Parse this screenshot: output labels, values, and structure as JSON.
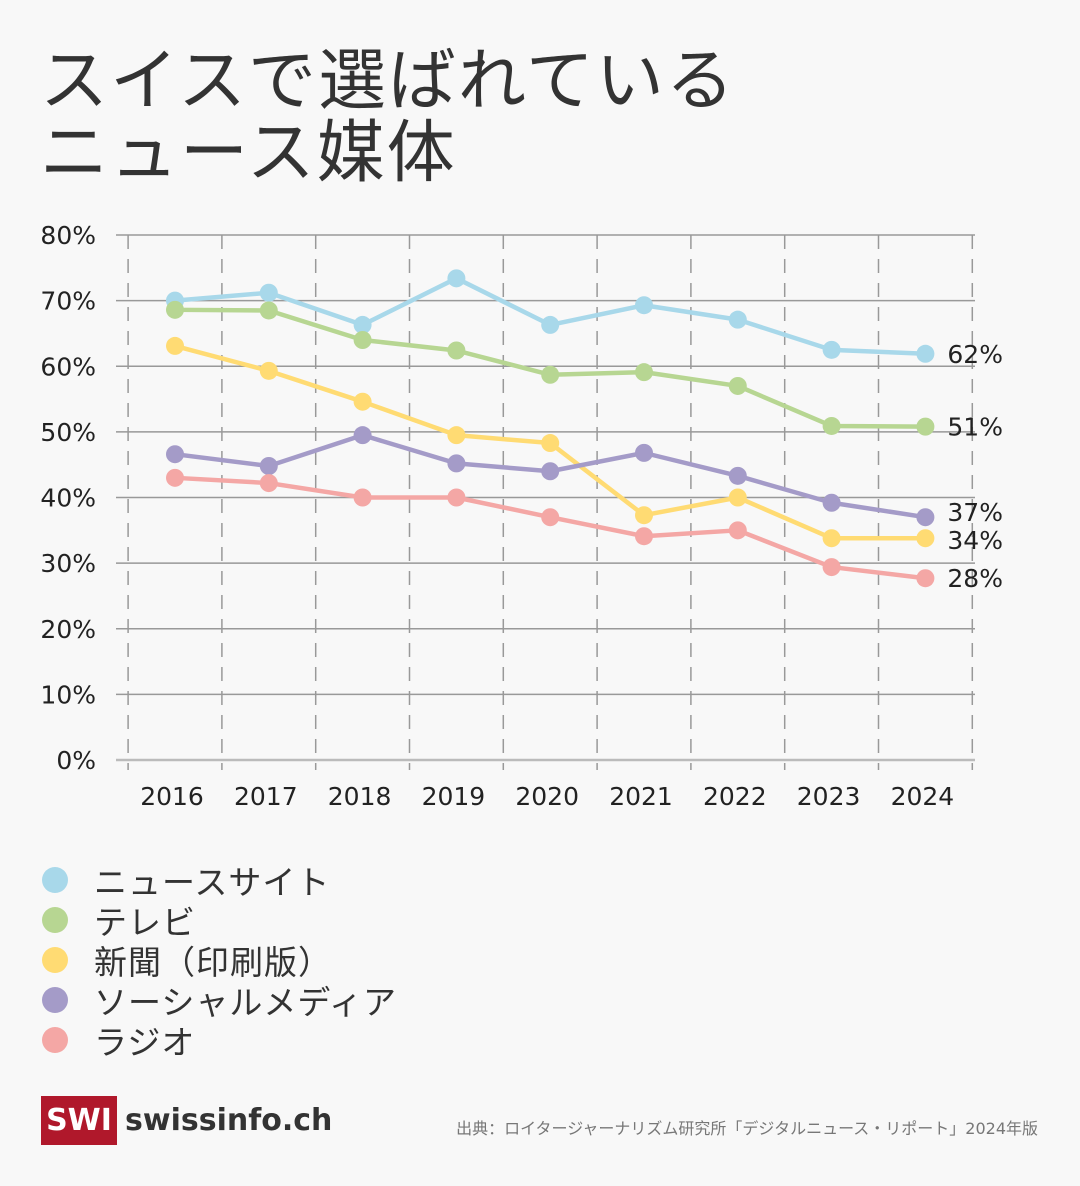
{
  "title": [
    "スイスで選ばれている",
    "ニュース媒体"
  ],
  "chart_data": {
    "type": "line",
    "title": "スイスで選ばれているニュース媒体",
    "x": [
      "2016",
      "2017",
      "2018",
      "2019",
      "2020",
      "2021",
      "2022",
      "2023",
      "2024"
    ],
    "ylim": [
      0,
      80
    ],
    "yticks": [
      "0%",
      "10%",
      "20%",
      "30%",
      "40%",
      "50%",
      "60%",
      "70%",
      "80%"
    ],
    "ytick_values": [
      0,
      10,
      20,
      30,
      40,
      50,
      60,
      70,
      80
    ],
    "grid": true,
    "legend_position": "bottom-left",
    "series": [
      {
        "name": "ニュースサイト",
        "color": "#a8d8ea",
        "values": [
          70.0,
          71.2,
          66.3,
          73.4,
          66.3,
          69.3,
          67.1,
          62.5,
          61.9
        ],
        "end_label": "62%"
      },
      {
        "name": "テレビ",
        "color": "#b7d692",
        "values": [
          68.6,
          68.5,
          64.0,
          62.4,
          58.7,
          59.1,
          57.0,
          50.9,
          50.8
        ],
        "end_label": "51%"
      },
      {
        "name": "新聞（印刷版）",
        "color": "#ffdb73",
        "values": [
          63.1,
          59.3,
          54.6,
          49.5,
          48.3,
          37.3,
          40.0,
          33.8,
          33.8
        ],
        "end_label": "34%"
      },
      {
        "name": "ソーシャルメディア",
        "color": "#a49bc8",
        "values": [
          46.6,
          44.8,
          49.5,
          45.2,
          44.0,
          46.8,
          43.3,
          39.2,
          37.0
        ],
        "end_label": "37%"
      },
      {
        "name": "ラジオ",
        "color": "#f4a7a5",
        "values": [
          43.0,
          42.2,
          40.0,
          40.0,
          37.0,
          34.1,
          35.0,
          29.4,
          27.7
        ],
        "end_label": "28%"
      }
    ]
  },
  "brand": {
    "box": "SWI",
    "name": "swissinfo.ch",
    "color": "#b0182b"
  },
  "source": "出典：ロイタージャーナリズム研究所「デジタルニュース・リポート」2024年版"
}
